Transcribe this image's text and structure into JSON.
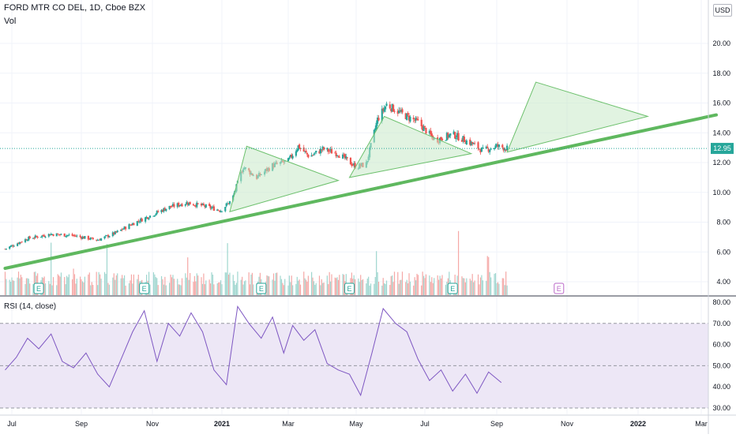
{
  "header": {
    "symbol": "FORD MTR CO DEL, 1D, Cboe BZX",
    "volume_label": "Vol",
    "currency": "USD"
  },
  "colors": {
    "up": "#26a69a",
    "down": "#ef5350",
    "trendline": "#5fb85f",
    "triangle_fill": "#c8e9c8",
    "triangle_stroke": "#6cc06c",
    "rsi_line": "#7e57c2",
    "rsi_band": "#ede7f6",
    "last_price_bg": "#26a69a",
    "earnings": "#26a69a",
    "earnings_future": "#ba68c8"
  },
  "chart_data": [
    {
      "type": "candlestick",
      "title": "FORD MTR CO DEL, 1D, Cboe BZX",
      "y_ticks": [
        "4.00",
        "6.00",
        "8.00",
        "10.00",
        "12.00",
        "14.00",
        "16.00",
        "18.00",
        "20.00"
      ],
      "ylim": [
        3.5,
        22.5
      ],
      "last_price": "12.95",
      "x_ticks": [
        "Jul",
        "Sep",
        "Nov",
        "2021",
        "Mar",
        "May",
        "Jul",
        "Sep",
        "Nov",
        "2022",
        "Mar"
      ],
      "close_series": {
        "dates": [
          "2020-06-25",
          "2020-07-15",
          "2020-08-05",
          "2020-08-25",
          "2020-09-15",
          "2020-10-01",
          "2020-10-15",
          "2020-11-01",
          "2020-11-15",
          "2020-12-01",
          "2020-12-15",
          "2020-12-31",
          "2021-01-10",
          "2021-01-20",
          "2021-02-01",
          "2021-02-15",
          "2021-03-01",
          "2021-03-10",
          "2021-03-20",
          "2021-04-01",
          "2021-04-15",
          "2021-05-01",
          "2021-05-10",
          "2021-05-20",
          "2021-05-28",
          "2021-06-10",
          "2021-06-25",
          "2021-07-10",
          "2021-07-25",
          "2021-08-10",
          "2021-08-20",
          "2021-09-01",
          "2021-09-10"
        ],
        "values": [
          6.2,
          6.9,
          7.2,
          7.1,
          6.8,
          7.3,
          7.9,
          8.5,
          9.0,
          9.3,
          9.1,
          8.8,
          9.5,
          11.7,
          11.0,
          11.8,
          12.1,
          13.1,
          12.4,
          12.9,
          12.6,
          11.7,
          11.9,
          14.9,
          15.9,
          15.3,
          14.7,
          13.5,
          13.9,
          13.3,
          12.8,
          13.1,
          12.95
        ]
      },
      "trendline": {
        "from": {
          "date": "2020-06-25",
          "value": 4.9
        },
        "to": {
          "date": "2022-03-15",
          "value": 15.2
        }
      },
      "triangles": [
        {
          "dates": [
            "2021-01-08",
            "2021-01-23",
            "2021-04-15"
          ],
          "values": [
            8.7,
            13.1,
            10.8
          ]
        },
        {
          "dates": [
            "2021-04-25",
            "2021-05-26",
            "2021-08-10"
          ],
          "values": [
            11.0,
            15.1,
            12.6
          ]
        },
        {
          "dates": [
            "2021-09-10",
            "2021-10-05",
            "2022-01-10"
          ],
          "values": [
            12.7,
            17.4,
            15.1
          ]
        }
      ],
      "earnings_dates": [
        "2020-07-25",
        "2020-10-25",
        "2021-02-05",
        "2021-04-25",
        "2021-07-25"
      ],
      "earnings_future_dates": [
        "2021-10-25"
      ],
      "earnings_label": "E"
    },
    {
      "type": "line",
      "title": "RSI (14, close)",
      "y_ticks": [
        "30.00",
        "40.00",
        "50.00",
        "60.00",
        "70.00",
        "80.00"
      ],
      "ylim": [
        28.5,
        81
      ],
      "bands": [
        30,
        70
      ],
      "midline": 50,
      "dates": [
        "2020-06-25",
        "2020-07-05",
        "2020-07-15",
        "2020-07-25",
        "2020-08-05",
        "2020-08-15",
        "2020-08-25",
        "2020-09-05",
        "2020-09-15",
        "2020-09-25",
        "2020-10-05",
        "2020-10-15",
        "2020-10-25",
        "2020-11-05",
        "2020-11-15",
        "2020-11-25",
        "2020-12-05",
        "2020-12-15",
        "2020-12-25",
        "2021-01-05",
        "2021-01-15",
        "2021-01-25",
        "2021-02-05",
        "2021-02-15",
        "2021-02-25",
        "2021-03-05",
        "2021-03-15",
        "2021-03-25",
        "2021-04-05",
        "2021-04-15",
        "2021-04-25",
        "2021-05-05",
        "2021-05-15",
        "2021-05-25",
        "2021-06-05",
        "2021-06-15",
        "2021-06-25",
        "2021-07-05",
        "2021-07-15",
        "2021-07-25",
        "2021-08-05",
        "2021-08-15",
        "2021-08-25",
        "2021-09-05"
      ],
      "values": [
        48,
        54,
        63,
        58,
        65,
        52,
        49,
        56,
        46,
        40,
        53,
        66,
        76,
        52,
        70,
        64,
        75,
        66,
        48,
        41,
        78,
        70,
        63,
        73,
        56,
        69,
        62,
        67,
        51,
        48,
        46,
        36,
        56,
        77,
        70,
        66,
        53,
        43,
        48,
        38,
        46,
        37,
        47,
        42
      ]
    }
  ]
}
